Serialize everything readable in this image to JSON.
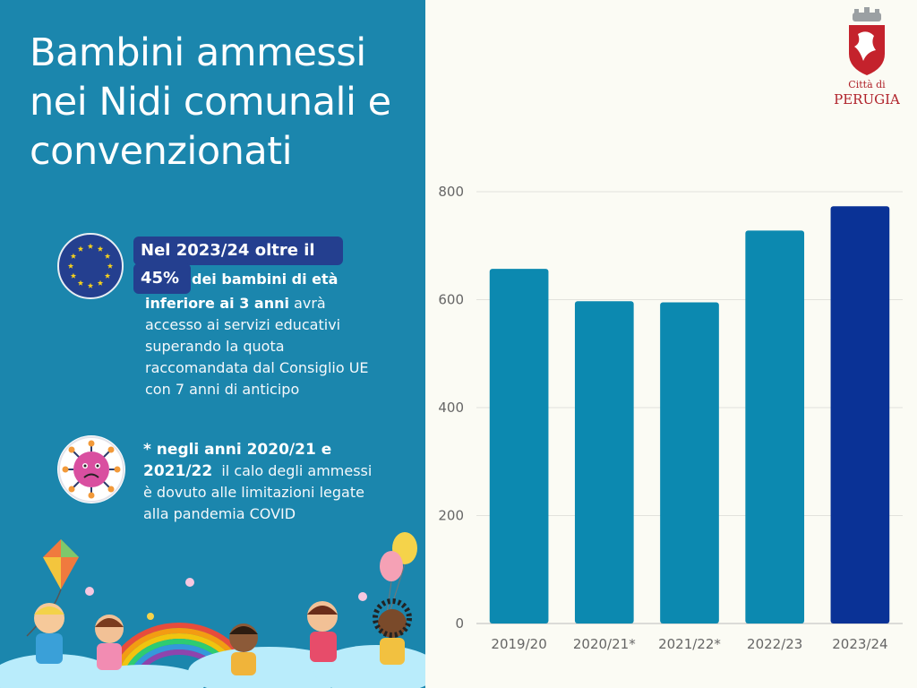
{
  "title": "Bambini ammessi nei Nidi comunali e convenzionati",
  "logo": {
    "line1": "Città di",
    "line2": "PERUGIA"
  },
  "eu_note": {
    "highlight_line1": "Nel 2023/24 oltre il",
    "highlight_line2": "45%",
    "bold_part1": "dei  bambini di età",
    "bold_part2": "inferiore ai 3 anni",
    "rest": "avrà accesso ai servizi educativi superando la quota raccomandata dal Consiglio UE con 7 anni di anticipo"
  },
  "covid_note": {
    "bold": "* negli anni 2020/21 e 2021/22",
    "rest": "il calo degli ammessi è dovuto alle limitazioni legate alla pandemia COVID"
  },
  "icons": {
    "eu": "eu-flag-icon",
    "covid": "virus-icon"
  },
  "colors": {
    "panel": "#1b86ad",
    "bar": "#0c89b0",
    "bar_highlight": "#0a3296",
    "highlight_bg": "#243f8f",
    "logo_red": "#b0222a"
  },
  "chart_data": {
    "type": "bar",
    "categories": [
      "2019/20",
      "2020/21*",
      "2021/22*",
      "2022/23",
      "2023/24"
    ],
    "values": [
      657,
      597,
      595,
      728,
      773
    ],
    "highlight_index": 4,
    "ylim": [
      0,
      800
    ],
    "yticks": [
      0,
      200,
      400,
      600,
      800
    ],
    "grid": true,
    "legend": "none"
  }
}
